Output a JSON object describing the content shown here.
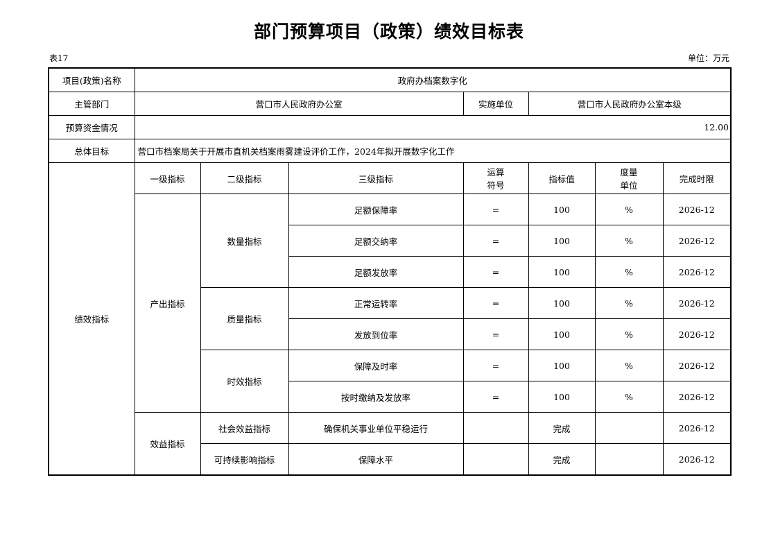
{
  "title": "部门预算项目（政策）绩效目标表",
  "table_no": "表17",
  "unit": "单位：万元",
  "project_name_label": "项目(政策)名称",
  "project_name": "政府办档案数字化",
  "dept_label": "主管部门",
  "dept": "营口市人民政府办公室",
  "impl_label": "实施单位",
  "impl": "营口市人民政府办公室本级",
  "budget_label": "预算资金情况",
  "budget": "12.00",
  "goal_label": "总体目标",
  "goal": "营口市档案局关于开展市直机关档案雨雾建设评价工作，2024年拟开展数字化工作",
  "perf_label": "绩效指标",
  "headers": [
    "一级指标",
    "二级指标",
    "三级指标",
    "运算符号",
    "指标值",
    "度量单位",
    "完成时限"
  ],
  "headers_split": {
    "op1": "运算",
    "op2": "符号",
    "u1": "度量",
    "u2": "单位"
  },
  "level1": [
    "产出指标",
    "效益指标"
  ],
  "level2": [
    "数量指标",
    "质量指标",
    "时效指标",
    "社会效益指标",
    "可持续影响指标"
  ],
  "rows": [
    {
      "l3": "足额保障率",
      "op": "=",
      "val": "100",
      "unit": "%",
      "deadline": "2026-12"
    },
    {
      "l3": "足额交纳率",
      "op": "=",
      "val": "100",
      "unit": "%",
      "deadline": "2026-12"
    },
    {
      "l3": "足额发放率",
      "op": "=",
      "val": "100",
      "unit": "%",
      "deadline": "2026-12"
    },
    {
      "l3": "正常运转率",
      "op": "=",
      "val": "100",
      "unit": "%",
      "deadline": "2026-12"
    },
    {
      "l3": "发放到位率",
      "op": "=",
      "val": "100",
      "unit": "%",
      "deadline": "2026-12"
    },
    {
      "l3": "保障及时率",
      "op": "=",
      "val": "100",
      "unit": "%",
      "deadline": "2026-12"
    },
    {
      "l3": "按时缴纳及发放率",
      "op": "=",
      "val": "100",
      "unit": "%",
      "deadline": "2026-12"
    },
    {
      "l3": "确保机关事业单位平稳运行",
      "op": "",
      "val": "完成",
      "unit": "",
      "deadline": "2026-12"
    },
    {
      "l3": "保障水平",
      "op": "",
      "val": "完成",
      "unit": "",
      "deadline": "2026-12"
    }
  ]
}
